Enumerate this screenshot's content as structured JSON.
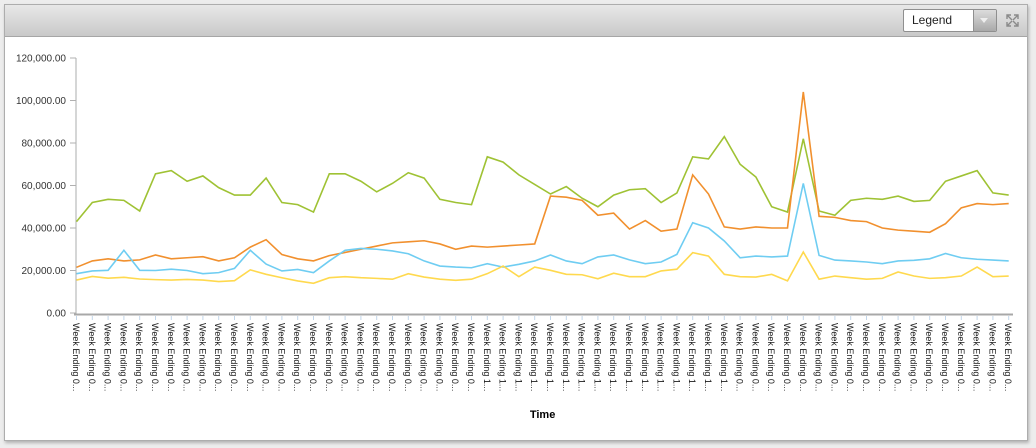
{
  "toolbar": {
    "legend_dropdown": {
      "value": "Legend"
    }
  },
  "chart_data": {
    "type": "line",
    "title": "",
    "xlabel": "Time",
    "ylabel": "",
    "ylim": [
      0,
      120000
    ],
    "grid": false,
    "legend_position": "collapsed-dropdown-top-right",
    "y_tick_values": [
      0,
      20000,
      40000,
      60000,
      80000,
      100000,
      120000
    ],
    "y_tick_labels": [
      "0.00",
      "20,000.00",
      "40,000.00",
      "60,000.00",
      "80,000.00",
      "100,000.00",
      "120,000.00"
    ],
    "categories": [
      "Week Ending 0...",
      "Week Ending 0...",
      "Week Ending 0...",
      "Week Ending 0...",
      "Week Ending 0...",
      "Week Ending 0...",
      "Week Ending 0...",
      "Week Ending 0...",
      "Week Ending 0...",
      "Week Ending 0...",
      "Week Ending 0...",
      "Week Ending 0...",
      "Week Ending 0...",
      "Week Ending 0...",
      "Week Ending 0...",
      "Week Ending 0...",
      "Week Ending 0...",
      "Week Ending 0...",
      "Week Ending 0...",
      "Week Ending 0...",
      "Week Ending 0...",
      "Week Ending 0...",
      "Week Ending 0...",
      "Week Ending 0...",
      "Week Ending 0...",
      "Week Ending 0...",
      "Week Ending 1...",
      "Week Ending 1...",
      "Week Ending 1...",
      "Week Ending 1...",
      "Week Ending 1...",
      "Week Ending 1...",
      "Week Ending 1...",
      "Week Ending 1...",
      "Week Ending 1...",
      "Week Ending 1...",
      "Week Ending 1...",
      "Week Ending 1...",
      "Week Ending 1...",
      "Week Ending 1...",
      "Week Ending 1...",
      "Week Ending 1...",
      "Week Ending 0...",
      "Week Ending 0...",
      "Week Ending 0...",
      "Week Ending 0...",
      "Week Ending 0...",
      "Week Ending 0...",
      "Week Ending 0...",
      "Week Ending 0...",
      "Week Ending 0...",
      "Week Ending 0...",
      "Week Ending 0...",
      "Week Ending 0...",
      "Week Ending 0...",
      "Week Ending 0...",
      "Week Ending 0...",
      "Week Ending 0...",
      "Week Ending 0...",
      "Week Ending 0..."
    ],
    "series": [
      {
        "color": "#9fc234",
        "values": [
          43000,
          52000,
          53500,
          53000,
          48000,
          65500,
          67000,
          62000,
          64500,
          59000,
          55500,
          55500,
          63500,
          52000,
          51000,
          47500,
          65500,
          65500,
          62000,
          57000,
          61000,
          66000,
          63500,
          53500,
          52000,
          51000,
          73500,
          71000,
          65000,
          60500,
          56000,
          59500,
          54000,
          50000,
          55500,
          58000,
          58500,
          52000,
          56500,
          73500,
          72500,
          83000,
          70000,
          64000,
          50000,
          47500,
          82000,
          48000,
          46000,
          53000,
          54000,
          53500,
          55000,
          52500,
          53000,
          62000,
          64500,
          67000,
          56500,
          55500
        ]
      },
      {
        "color": "#f1902e",
        "values": [
          21500,
          24500,
          25500,
          24500,
          25000,
          27300,
          25500,
          26000,
          26500,
          24500,
          26000,
          31000,
          34500,
          27500,
          25500,
          24500,
          27000,
          28500,
          30000,
          31500,
          33000,
          33500,
          34000,
          32500,
          30000,
          31500,
          31000,
          31500,
          32000,
          32500,
          55000,
          54500,
          53000,
          46000,
          47000,
          39500,
          43500,
          38500,
          39500,
          65000,
          56000,
          40500,
          39500,
          40500,
          40000,
          40000,
          104000,
          45500,
          45000,
          43500,
          43000,
          40000,
          39000,
          38500,
          38000,
          42000,
          49500,
          51500,
          51000,
          51500
        ]
      },
      {
        "color": "#6fcdf2",
        "values": [
          18500,
          19800,
          20100,
          29500,
          20100,
          20000,
          20600,
          20000,
          18500,
          19000,
          21000,
          29500,
          23000,
          19800,
          20500,
          19000,
          24500,
          29500,
          30400,
          30000,
          29200,
          27900,
          24500,
          22100,
          21600,
          21300,
          23200,
          21600,
          22900,
          24500,
          27300,
          24500,
          23200,
          26400,
          27300,
          25000,
          23200,
          24000,
          27600,
          42500,
          40000,
          33900,
          26000,
          26800,
          26400,
          26800,
          61000,
          27100,
          24900,
          24500,
          24000,
          23200,
          24500,
          24800,
          25500,
          28000,
          26000,
          25300,
          24900,
          24500
        ]
      },
      {
        "color": "#ffd94e",
        "values": [
          15500,
          17200,
          16400,
          16800,
          16000,
          15700,
          15500,
          15800,
          15500,
          14800,
          15200,
          20300,
          18200,
          16600,
          15100,
          14000,
          16600,
          17100,
          16600,
          16300,
          15900,
          18500,
          16900,
          15900,
          15400,
          15900,
          18500,
          22100,
          17100,
          21600,
          20100,
          18200,
          18000,
          16100,
          18700,
          17100,
          17100,
          19800,
          20600,
          28400,
          26800,
          18200,
          17100,
          16900,
          18200,
          15100,
          28700,
          15900,
          17400,
          16600,
          15900,
          16300,
          19300,
          17400,
          16300,
          16600,
          17400,
          21600,
          17100,
          17400
        ]
      }
    ]
  }
}
